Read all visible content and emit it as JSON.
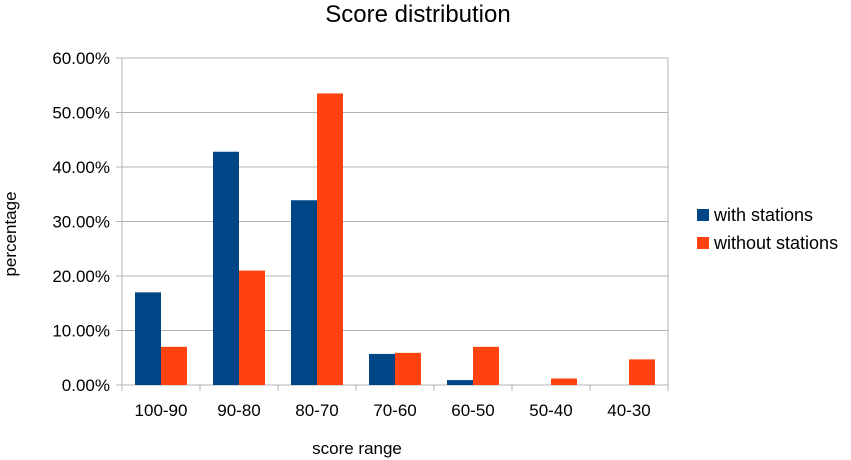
{
  "chart_data": {
    "type": "bar",
    "title": "Score distribution",
    "xlabel": "score range",
    "ylabel": "percentage",
    "categories": [
      "100-90",
      "90-80",
      "80-70",
      "70-60",
      "60-50",
      "50-40",
      "40-30"
    ],
    "series": [
      {
        "name": "with stations",
        "color": "#004586",
        "values": [
          17.0,
          42.8,
          33.9,
          5.7,
          0.9,
          0,
          0
        ]
      },
      {
        "name": "without stations",
        "color": "#ff420e",
        "values": [
          7.0,
          21.0,
          53.5,
          5.9,
          7.0,
          1.2,
          4.7
        ]
      }
    ],
    "ylim": [
      0,
      60
    ],
    "yticks": [
      "0.00%",
      "10.00%",
      "20.00%",
      "30.00%",
      "40.00%",
      "50.00%",
      "60.00%"
    ],
    "grid": true,
    "legend_position": "right"
  }
}
